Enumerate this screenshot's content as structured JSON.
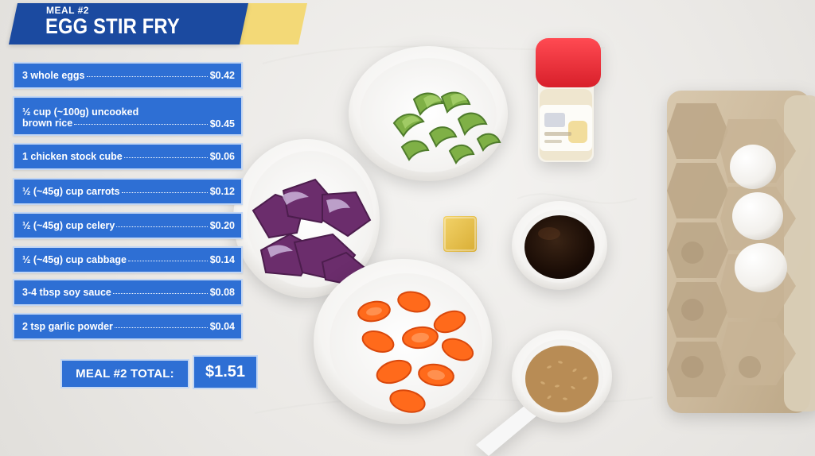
{
  "header": {
    "kicker": "MEAL #2",
    "title": "EGG STIR FRY"
  },
  "costs": [
    {
      "item_lines": [
        "3 whole eggs"
      ],
      "price": "$0.42"
    },
    {
      "item_lines": [
        "½ cup (~100g) uncooked",
        "brown rice"
      ],
      "price": "$0.45"
    },
    {
      "item_lines": [
        "1 chicken stock cube"
      ],
      "price": "$0.06"
    },
    {
      "item_lines": [
        "½ (~45g) cup carrots"
      ],
      "price": "$0.12"
    },
    {
      "item_lines": [
        "½ (~45g) cup celery"
      ],
      "price": "$0.20"
    },
    {
      "item_lines": [
        "½ (~45g) cup cabbage"
      ],
      "price": "$0.14"
    },
    {
      "item_lines": [
        "3-4 tbsp soy sauce"
      ],
      "price": "$0.08"
    },
    {
      "item_lines": [
        "2 tsp garlic powder"
      ],
      "price": "$0.04"
    }
  ],
  "total": {
    "label": "MEAL #2 TOTAL:",
    "value": "$1.51"
  },
  "colors": {
    "header_blue": "#1b4aa0",
    "header_accent": "#f3d977",
    "panel_blue": "#2e6fd4",
    "background": "#ebe9e6",
    "text": "#ffffff"
  },
  "icons": {
    "scene": [
      "bowl-icon",
      "celery-icon",
      "cabbage-icon",
      "carrot-icon",
      "soy-sauce-icon",
      "rice-icon",
      "stock-cube-icon",
      "spice-jar-icon",
      "egg-carton-icon",
      "egg-icon"
    ]
  }
}
